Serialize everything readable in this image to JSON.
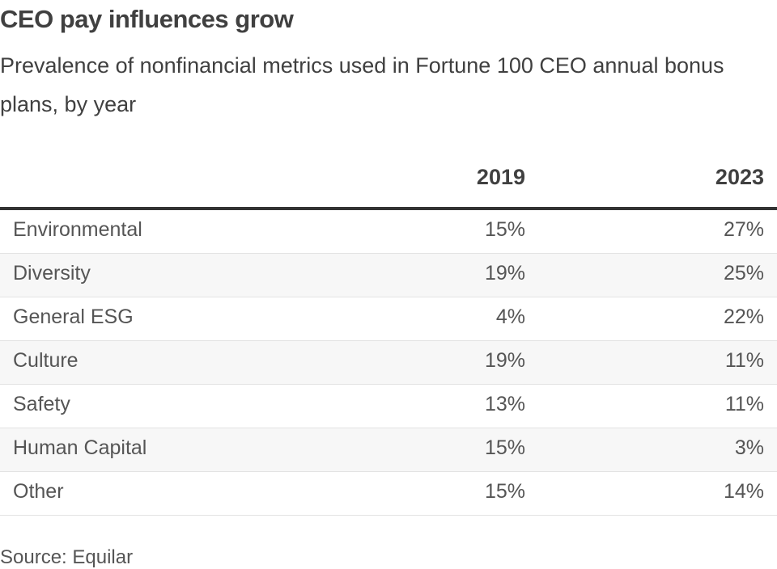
{
  "title": "CEO pay influences grow",
  "subtitle": "Prevalence of nonfinancial metrics used in Fortune 100 CEO annual bonus plans, by year",
  "source": "Source: Equilar",
  "chart_data": {
    "type": "table",
    "title": "CEO pay influences grow",
    "subtitle": "Prevalence of nonfinancial metrics used in Fortune 100 CEO annual bonus plans, by year",
    "columns": [
      "2019",
      "2023"
    ],
    "rows": [
      {
        "label": "Environmental",
        "values": [
          "15%",
          "27%"
        ]
      },
      {
        "label": "Diversity",
        "values": [
          "19%",
          "25%"
        ]
      },
      {
        "label": "General ESG",
        "values": [
          "4%",
          "22%"
        ]
      },
      {
        "label": "Culture",
        "values": [
          "19%",
          "11%"
        ]
      },
      {
        "label": "Safety",
        "values": [
          "13%",
          "11%"
        ]
      },
      {
        "label": "Human Capital",
        "values": [
          "15%",
          "3%"
        ]
      },
      {
        "label": "Other",
        "values": [
          "15%",
          "14%"
        ]
      }
    ],
    "source": "Source: Equilar"
  }
}
